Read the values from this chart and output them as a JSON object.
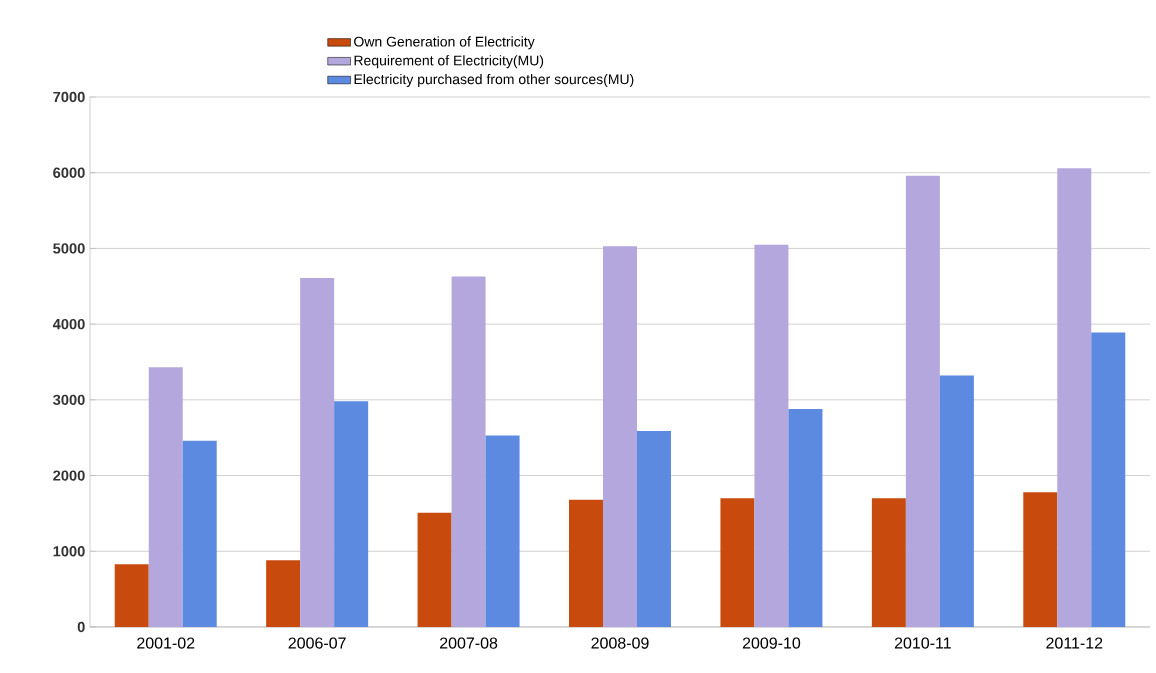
{
  "chart_data": {
    "type": "bar",
    "categories": [
      "2001-02",
      "2006-07",
      "2007-08",
      "2008-09",
      "2009-10",
      "2010-11",
      "2011-12"
    ],
    "series": [
      {
        "name": "Own Generation of Electricity",
        "color": "#c84a0c",
        "values": [
          830,
          880,
          1510,
          1680,
          1700,
          1700,
          1780
        ]
      },
      {
        "name": "Requirement of Electricity(MU)",
        "color": "#b4a7de",
        "values": [
          3430,
          4610,
          4630,
          5030,
          5050,
          5960,
          6060
        ]
      },
      {
        "name": "Electricity purchased from other sources(MU)",
        "color": "#5b8ae0",
        "values": [
          2460,
          2980,
          2530,
          2590,
          2880,
          3320,
          3890
        ]
      }
    ],
    "ylim": [
      0,
      7000
    ],
    "yticks": [
      0,
      1000,
      2000,
      3000,
      4000,
      5000,
      6000,
      7000
    ],
    "grid": "y",
    "legend": "top"
  }
}
